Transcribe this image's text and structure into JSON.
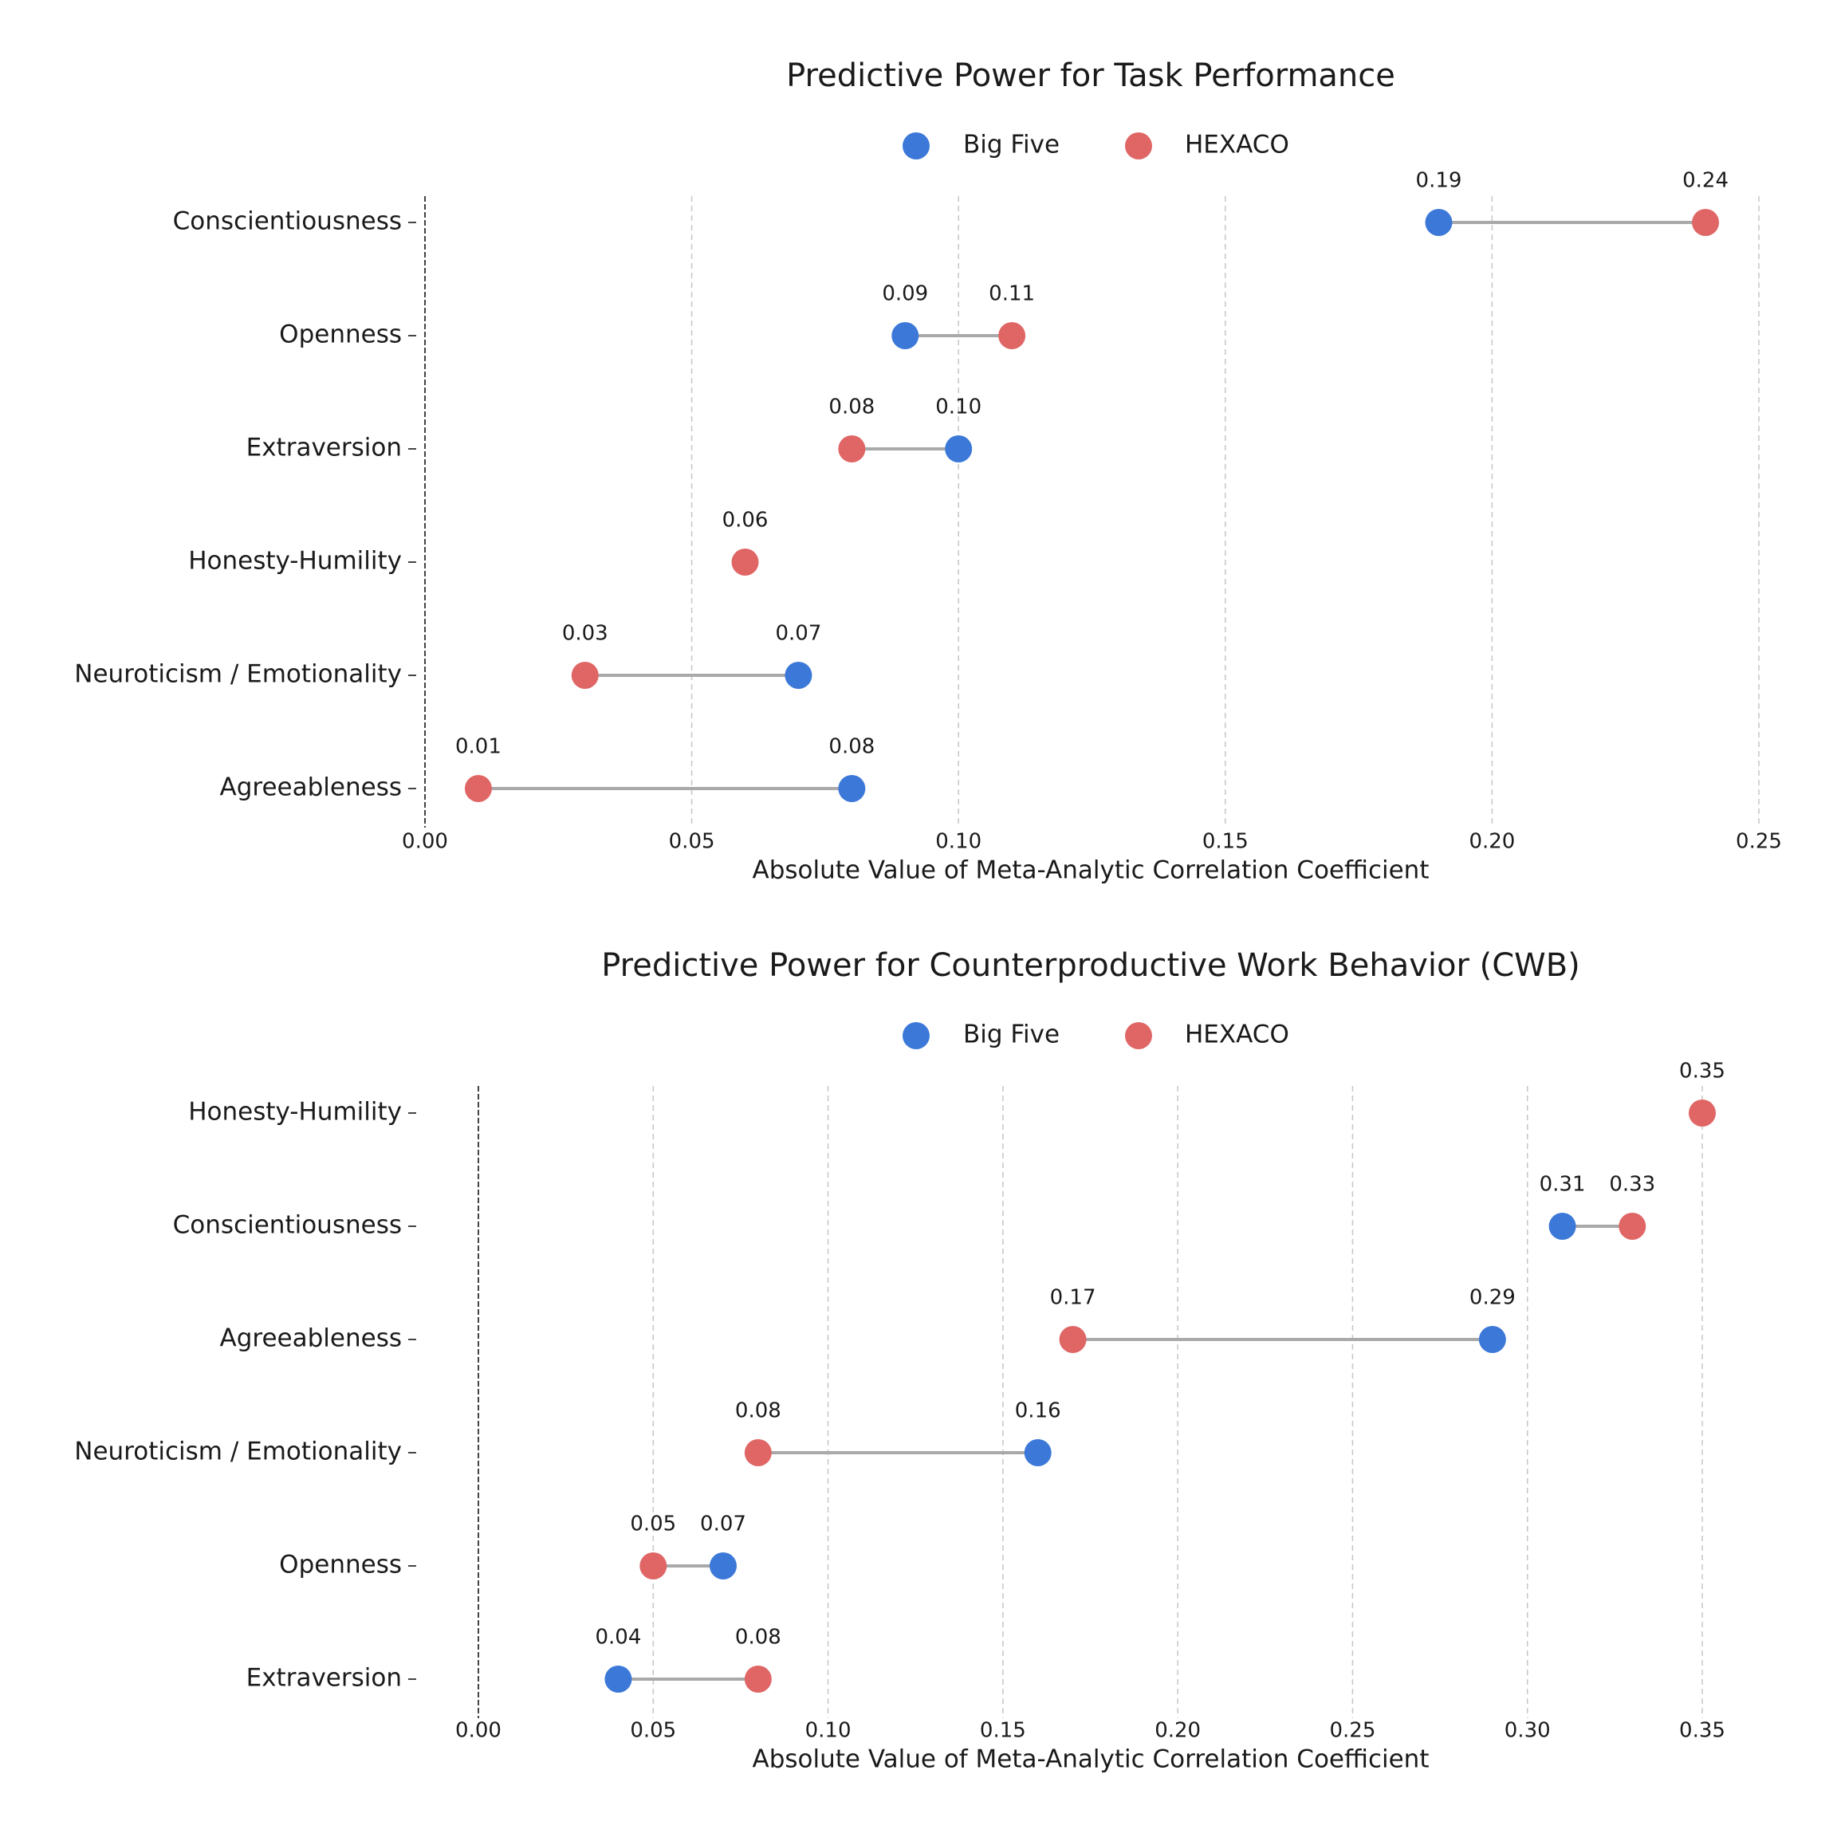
{
  "chart_data": [
    {
      "type": "dumbbell",
      "title": "Predictive Power for Task Performance",
      "xlabel": "Absolute Value of Meta-Analytic Correlation Coefficient",
      "xlim": [
        0,
        0.25
      ],
      "xticks": [
        "0.00",
        "0.05",
        "0.10",
        "0.15",
        "0.20",
        "0.25"
      ],
      "grid": "x-dashed",
      "legend": "top-center",
      "categories": [
        "Conscientiousness",
        "Openness",
        "Extraversion",
        "Honesty-Humility",
        "Neuroticism / Emotionality",
        "Agreeableness"
      ],
      "series": [
        {
          "name": "Big Five",
          "color": "#3b78d8",
          "values": [
            0.19,
            0.09,
            0.1,
            null,
            0.07,
            0.08
          ]
        },
        {
          "name": "HEXACO",
          "color": "#e06666",
          "values": [
            0.24,
            0.11,
            0.08,
            0.06,
            0.03,
            0.01
          ]
        }
      ]
    },
    {
      "type": "dumbbell",
      "title": "Predictive Power for Counterproductive Work Behavior (CWB)",
      "xlabel": "Absolute Value of Meta-Analytic Correlation Coefficient",
      "xlim": [
        0,
        0.35
      ],
      "xticks": [
        "0.00",
        "0.05",
        "0.10",
        "0.15",
        "0.20",
        "0.25",
        "0.30",
        "0.35"
      ],
      "grid": "x-dashed",
      "legend": "top-center",
      "categories": [
        "Honesty-Humility",
        "Conscientiousness",
        "Agreeableness",
        "Neuroticism / Emotionality",
        "Openness",
        "Extraversion"
      ],
      "series": [
        {
          "name": "Big Five",
          "color": "#3b78d8",
          "values": [
            null,
            0.31,
            0.29,
            0.16,
            0.07,
            0.04
          ]
        },
        {
          "name": "HEXACO",
          "color": "#e06666",
          "values": [
            0.35,
            0.33,
            0.17,
            0.08,
            0.05,
            0.08
          ]
        }
      ]
    }
  ]
}
